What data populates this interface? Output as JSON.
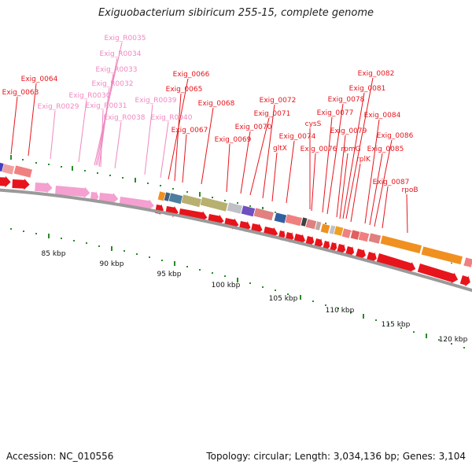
{
  "title": "Exiguobacterium sibiricum 255-15, complete genome",
  "footer": {
    "accession": "Accession: NC_010556",
    "summary": "Topology: circular; Length: 3,034,136 bp; Genes: 3,104"
  },
  "colors": {
    "label_red": "#e8141c",
    "label_pink": "#f088c0",
    "cds_red": "#e8141c",
    "rrna_pink": "#f4a0d0",
    "tick_green": "#2a8a2a",
    "backbone": "#9a9a9a"
  },
  "scale_labels": [
    "85 kbp",
    "90 kbp",
    "95 kbp",
    "100 kbp",
    "105 kbp",
    "110 kbp",
    "115 kbp",
    "120 kbp"
  ],
  "gene_labels": {
    "red": [
      "Exig_0063",
      "Exig_0064",
      "Exig_0066",
      "Exig_0065",
      "Exig_0068",
      "Exig_0067",
      "Exig_0072",
      "Exig_0071",
      "Exig_0070",
      "Exig_0069",
      "Exig_0074",
      "gltX",
      "cysS",
      "Exig_0077",
      "Exig_0078",
      "Exig_0076",
      "Exig_0079",
      "Exig_0082",
      "Exig_0081",
      "Exig_0084",
      "rpmG",
      "rplK",
      "Exig_0086",
      "Exig_0085",
      "Exig_0087",
      "rpoB"
    ],
    "pink": [
      "Exig_R0035",
      "Exig_R0034",
      "Exig_R0033",
      "Exig_R0032",
      "Exig_R0030",
      "Exig_R0031",
      "Exig_R0029",
      "Exig_R0038",
      "Exig_R0039",
      "Exig_R0040"
    ]
  }
}
